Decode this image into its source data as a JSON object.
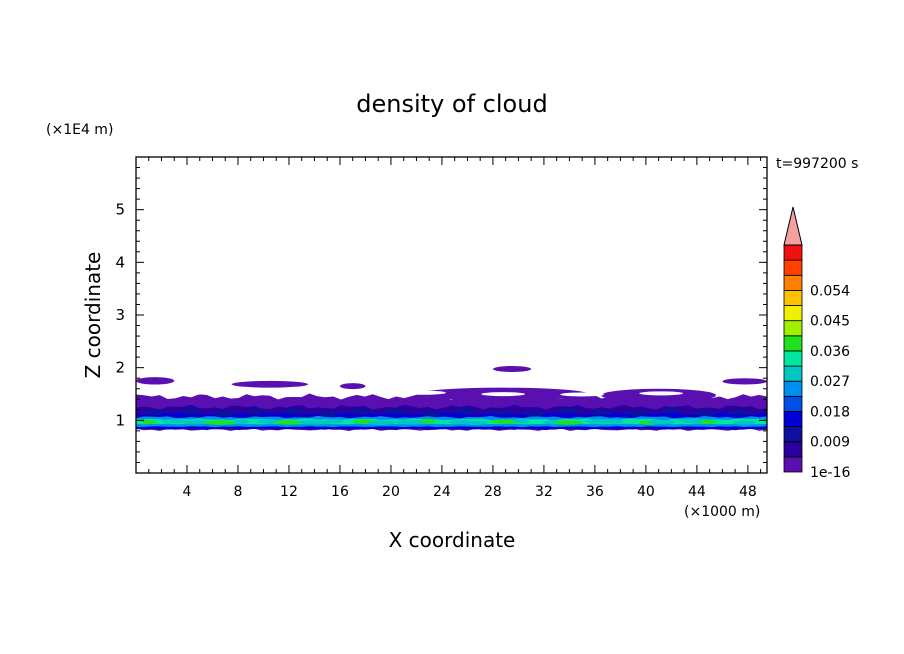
{
  "chart_data": {
    "type": "heatmap",
    "title": "density of cloud",
    "xlabel": "X coordinate",
    "ylabel": "Z coordinate",
    "x_unit": "(×1000 m)",
    "y_unit": "(×1E4 m)",
    "time_label": "t=997200 s",
    "xlim": [
      0,
      49.5
    ],
    "ylim": [
      0,
      6
    ],
    "x_ticks": [
      "4",
      "8",
      "12",
      "16",
      "20",
      "24",
      "28",
      "32",
      "36",
      "40",
      "44",
      "48"
    ],
    "y_ticks": [
      "1",
      "2",
      "3",
      "4",
      "5"
    ],
    "colorbar": {
      "labels": [
        "1e-16",
        "0.009",
        "0.018",
        "0.027",
        "0.036",
        "0.045",
        "0.054"
      ],
      "levels": [
        1e-16,
        0.0045,
        0.009,
        0.0135,
        0.018,
        0.0225,
        0.027,
        0.0315,
        0.036,
        0.0405,
        0.045,
        0.0495,
        0.054,
        0.0585
      ],
      "colors": [
        "#5a10b0",
        "#2a00a0",
        "#1010a0",
        "#0000d8",
        "#0050e8",
        "#0090f0",
        "#00c8c0",
        "#00e8a0",
        "#20e020",
        "#a0f000",
        "#f0f000",
        "#ffc000",
        "#ff8000",
        "#ff4000",
        "#f01010"
      ],
      "extend_color": "#f4a0a0"
    },
    "layers": [
      {
        "level": "1e-16",
        "z_bottom": 0.82,
        "z_top": 1.45
      },
      {
        "level": "0.0045",
        "z_bottom": 0.83,
        "z_top": 1.25
      },
      {
        "level": "0.009",
        "z_bottom": 0.84,
        "z_top": 1.12
      },
      {
        "level": "0.018",
        "z_bottom": 0.88,
        "z_top": 1.06
      },
      {
        "level": "0.027",
        "z_bottom": 0.93,
        "z_top": 1.02
      }
    ],
    "upper_patches": [
      {
        "x0": 0.0,
        "x1": 3.0,
        "z0": 1.68,
        "z1": 1.82
      },
      {
        "x0": 7.5,
        "x1": 13.5,
        "z0": 1.62,
        "z1": 1.75
      },
      {
        "x0": 16.0,
        "x1": 18.0,
        "z0": 1.6,
        "z1": 1.7
      },
      {
        "x0": 28.0,
        "x1": 31.0,
        "z0": 1.92,
        "z1": 2.03
      },
      {
        "x0": 22.0,
        "x1": 35.5,
        "z0": 1.38,
        "z1": 1.62
      },
      {
        "x0": 36.5,
        "x1": 45.5,
        "z0": 1.35,
        "z1": 1.6
      },
      {
        "x0": 46.0,
        "x1": 49.5,
        "z0": 1.68,
        "z1": 1.8
      }
    ]
  }
}
